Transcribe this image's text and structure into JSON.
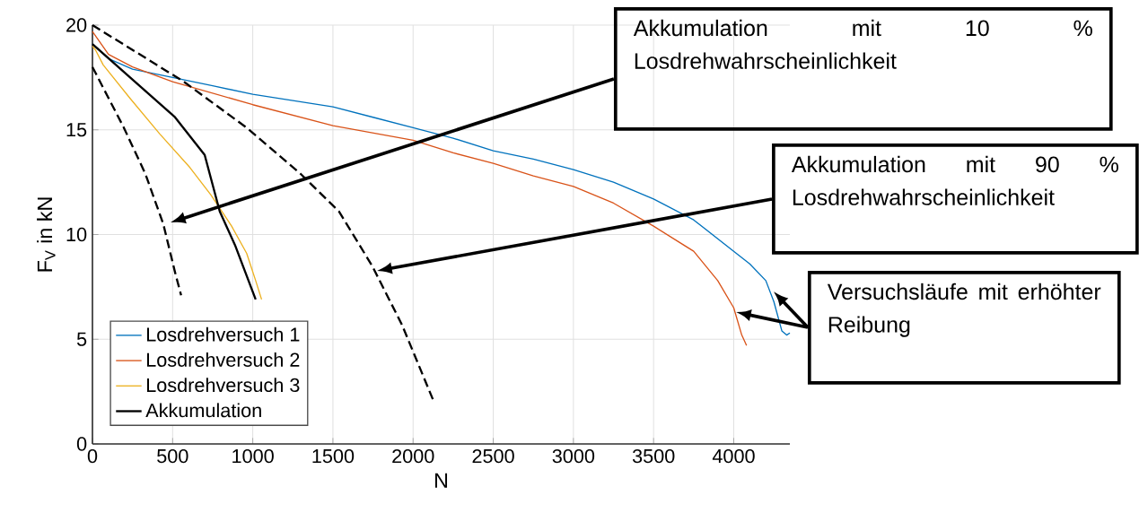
{
  "chart_data": {
    "type": "line",
    "xlabel": "N",
    "ylabel": "F$_{V}$ in kN",
    "xlim": [
      0,
      4350
    ],
    "ylim": [
      0,
      20
    ],
    "xticks": [
      0,
      500,
      1000,
      1500,
      2000,
      2500,
      3000,
      3500,
      4000
    ],
    "yticks": [
      0,
      5,
      10,
      15,
      20
    ],
    "grid": true,
    "legend": "bottom left",
    "series": [
      {
        "name": "Losdrehversuch 1",
        "color": "#0072bd",
        "line_style": "solid",
        "x": [
          0,
          100,
          250,
          500,
          750,
          1000,
          1250,
          1500,
          1750,
          2000,
          2250,
          2500,
          2750,
          3000,
          3250,
          3500,
          3750,
          4000,
          4100,
          4200,
          4250,
          4300,
          4330,
          4350
        ],
        "values": [
          19.1,
          18.4,
          17.9,
          17.5,
          17.1,
          16.7,
          16.4,
          16.1,
          15.6,
          15.1,
          14.6,
          14.0,
          13.6,
          13.1,
          12.5,
          11.7,
          10.7,
          9.2,
          8.6,
          7.8,
          6.8,
          5.4,
          5.2,
          5.3
        ]
      },
      {
        "name": "Losdrehversuch 2",
        "color": "#d95319",
        "line_style": "solid",
        "x": [
          0,
          100,
          250,
          500,
          1000,
          1500,
          2000,
          2250,
          2500,
          2750,
          3000,
          3250,
          3500,
          3750,
          3900,
          4000,
          4050,
          4080
        ],
        "values": [
          19.7,
          18.6,
          18.0,
          17.3,
          16.2,
          15.2,
          14.5,
          13.9,
          13.4,
          12.8,
          12.3,
          11.5,
          10.4,
          9.2,
          7.8,
          6.5,
          5.2,
          4.7
        ]
      },
      {
        "name": "Losdrehversuch 3",
        "color": "#edb120",
        "line_style": "solid",
        "x": [
          0,
          20,
          67,
          235,
          420,
          608,
          738,
          868,
          962,
          1018,
          1055
        ],
        "values": [
          19.0,
          18.8,
          18.1,
          16.5,
          14.8,
          13.2,
          11.9,
          10.4,
          9.1,
          7.8,
          6.9
        ]
      },
      {
        "name": "Akkumulation",
        "color": "#000000",
        "line_style": "solid",
        "x": [
          0,
          235,
          515,
          700,
          794,
          889,
          1018
        ],
        "values": [
          19.1,
          17.5,
          15.6,
          13.8,
          11.1,
          9.5,
          6.9
        ]
      },
      {
        "color": "#000000",
        "line_style": "dashed",
        "x": [
          0,
          196,
          330,
          442,
          515,
          553
        ],
        "values": [
          18.0,
          15.1,
          12.9,
          10.5,
          8.2,
          7.1
        ]
      },
      {
        "color": "#000000",
        "line_style": "dashed",
        "x": [
          0,
          570,
          962,
          1298,
          1538,
          1745,
          1930,
          2125
        ],
        "values": [
          20.0,
          17.3,
          15.1,
          12.9,
          11.1,
          8.5,
          5.7,
          2.1
        ]
      }
    ],
    "annotations": [
      "Akkumulation mit 10 % Losdrehwahrscheinlichkeit",
      "Akkumulation mit 90 % Losdrehwahrscheinlichkeit",
      "Versuchsläufe mit erhöhter Reibung"
    ]
  }
}
